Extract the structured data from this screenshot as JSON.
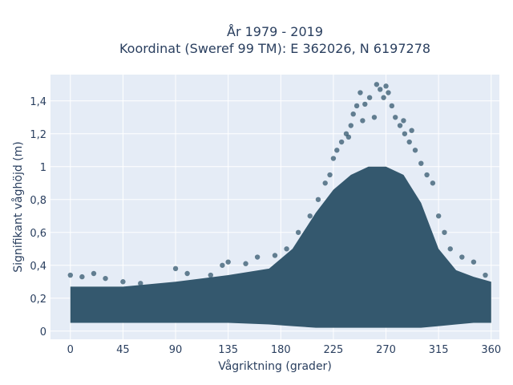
{
  "chart_data": {
    "type": "scatter",
    "title_lines": [
      "År 1979 - 2019",
      "Koordinat (Sweref 99 TM): E 362026, N 6197278"
    ],
    "xlabel": "Vågriktning (grader)",
    "ylabel": "Signifikant våghöjd (m)",
    "xlim": [
      -17,
      367
    ],
    "ylim": [
      -0.05,
      1.56
    ],
    "xticks": [
      0,
      45,
      90,
      135,
      180,
      225,
      270,
      315,
      360
    ],
    "xtick_labels": [
      "0",
      "45",
      "90",
      "135",
      "180",
      "225",
      "270",
      "315",
      "360"
    ],
    "yticks": [
      0,
      0.2,
      0.4,
      0.6,
      0.8,
      1.0,
      1.2,
      1.4
    ],
    "ytick_labels": [
      "0",
      "0,2",
      "0,4",
      "0,6",
      "0,8",
      "1",
      "1,2",
      "1,4"
    ],
    "grid": true,
    "plot_bgcolor": "#e5ecf6",
    "marker_color": "#34586e",
    "marker_opacity": 0.75,
    "points": [
      [
        0,
        0.34
      ],
      [
        10,
        0.33
      ],
      [
        20,
        0.35
      ],
      [
        30,
        0.32
      ],
      [
        45,
        0.3
      ],
      [
        60,
        0.29
      ],
      [
        90,
        0.38
      ],
      [
        100,
        0.35
      ],
      [
        120,
        0.34
      ],
      [
        130,
        0.4
      ],
      [
        135,
        0.42
      ],
      [
        150,
        0.41
      ],
      [
        160,
        0.45
      ],
      [
        175,
        0.46
      ],
      [
        185,
        0.5
      ],
      [
        195,
        0.6
      ],
      [
        205,
        0.7
      ],
      [
        212,
        0.8
      ],
      [
        218,
        0.9
      ],
      [
        222,
        0.95
      ],
      [
        225,
        1.05
      ],
      [
        228,
        1.1
      ],
      [
        232,
        1.15
      ],
      [
        236,
        1.2
      ],
      [
        240,
        1.25
      ],
      [
        242,
        1.32
      ],
      [
        245,
        1.37
      ],
      [
        248,
        1.45
      ],
      [
        252,
        1.38
      ],
      [
        256,
        1.42
      ],
      [
        262,
        1.5
      ],
      [
        265,
        1.47
      ],
      [
        268,
        1.42
      ],
      [
        270,
        1.49
      ],
      [
        272,
        1.45
      ],
      [
        275,
        1.37
      ],
      [
        278,
        1.3
      ],
      [
        282,
        1.25
      ],
      [
        286,
        1.2
      ],
      [
        290,
        1.15
      ],
      [
        295,
        1.1
      ],
      [
        300,
        1.02
      ],
      [
        305,
        0.95
      ],
      [
        310,
        0.9
      ],
      [
        315,
        0.7
      ],
      [
        320,
        0.6
      ],
      [
        325,
        0.5
      ],
      [
        335,
        0.45
      ],
      [
        345,
        0.42
      ],
      [
        355,
        0.34
      ],
      [
        260,
        1.3
      ],
      [
        250,
        1.28
      ],
      [
        238,
        1.18
      ],
      [
        285,
        1.28
      ],
      [
        292,
        1.22
      ]
    ],
    "density": [
      {
        "x": 0,
        "lo": 0.05,
        "hi": 0.27
      },
      {
        "x": 45,
        "lo": 0.05,
        "hi": 0.27
      },
      {
        "x": 90,
        "lo": 0.05,
        "hi": 0.3
      },
      {
        "x": 135,
        "lo": 0.05,
        "hi": 0.34
      },
      {
        "x": 170,
        "lo": 0.04,
        "hi": 0.38
      },
      {
        "x": 190,
        "lo": 0.03,
        "hi": 0.5
      },
      {
        "x": 210,
        "lo": 0.02,
        "hi": 0.72
      },
      {
        "x": 225,
        "lo": 0.02,
        "hi": 0.86
      },
      {
        "x": 240,
        "lo": 0.02,
        "hi": 0.95
      },
      {
        "x": 255,
        "lo": 0.02,
        "hi": 1.0
      },
      {
        "x": 270,
        "lo": 0.02,
        "hi": 1.0
      },
      {
        "x": 285,
        "lo": 0.02,
        "hi": 0.95
      },
      {
        "x": 300,
        "lo": 0.02,
        "hi": 0.78
      },
      {
        "x": 315,
        "lo": 0.03,
        "hi": 0.5
      },
      {
        "x": 330,
        "lo": 0.04,
        "hi": 0.37
      },
      {
        "x": 345,
        "lo": 0.05,
        "hi": 0.33
      },
      {
        "x": 360,
        "lo": 0.05,
        "hi": 0.3
      }
    ]
  }
}
